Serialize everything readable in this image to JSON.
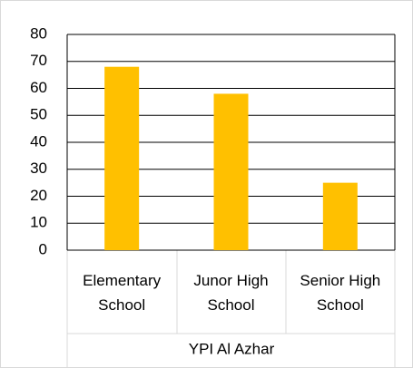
{
  "chart_data": {
    "type": "bar",
    "categories": [
      "Elementary School",
      "Junor High School",
      "Senior High School"
    ],
    "group_label": "YPI Al Azhar",
    "values": [
      68,
      58,
      25
    ],
    "color": "#ffc000",
    "ylim": [
      0,
      80
    ],
    "yticks": [
      0,
      10,
      20,
      30,
      40,
      50,
      60,
      70,
      80
    ],
    "grid": true
  }
}
